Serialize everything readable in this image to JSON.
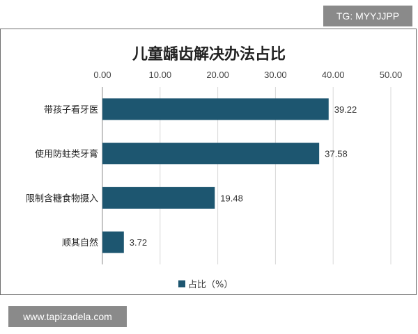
{
  "watermarks": {
    "top_right": "TG: MYYJJPP",
    "bottom_left": "www.tapizadela.com"
  },
  "chart_data": {
    "type": "bar",
    "orientation": "horizontal",
    "title": "儿童龋齿解决办法占比",
    "categories": [
      "带孩子看牙医",
      "使用防蛀类牙膏",
      "限制含糖食物摄入",
      "顺其自然"
    ],
    "series": [
      {
        "name": "占比（%）",
        "values": [
          39.22,
          37.58,
          19.48,
          3.72
        ],
        "color": "#1d5670"
      }
    ],
    "x_ticks": [
      "0.00",
      "10.00",
      "20.00",
      "30.00",
      "40.00",
      "50.00"
    ],
    "xlim": [
      0,
      50
    ],
    "x_axis_position": "top",
    "grid": true,
    "data_labels": [
      "39.22",
      "37.58",
      "19.48",
      "3.72"
    ],
    "legend": {
      "position": "bottom"
    }
  }
}
